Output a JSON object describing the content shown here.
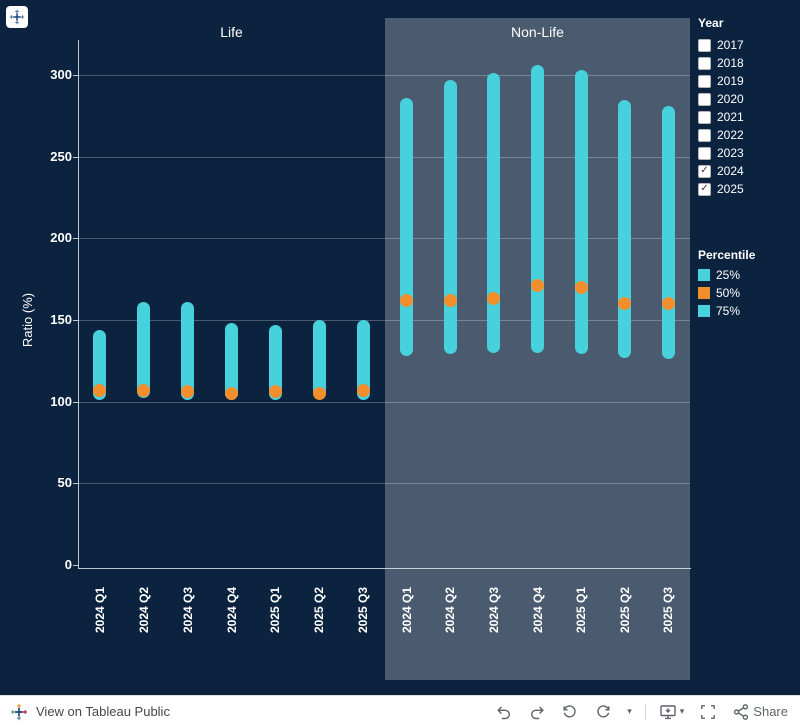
{
  "chart_data": {
    "type": "bar",
    "subtype": "percentile-range-bars-with-median-dot",
    "title": "",
    "ylabel": "Ratio (%)",
    "ylim": [
      0,
      320
    ],
    "yticks": [
      0,
      50,
      100,
      150,
      200,
      250,
      300
    ],
    "grid": true,
    "legend_position": "right",
    "categories": [
      "2024 Q1",
      "2024 Q2",
      "2024 Q3",
      "2024 Q4",
      "2025 Q1",
      "2025 Q2",
      "2025 Q3"
    ],
    "panels": [
      {
        "label": "Life",
        "series": [
          {
            "name": "25%",
            "values": [
              101,
              102,
              101,
              101,
              101,
              102,
              101
            ]
          },
          {
            "name": "50%",
            "values": [
              107,
              107,
              106,
              105,
              106,
              105,
              107
            ]
          },
          {
            "name": "75%",
            "values": [
              144,
              161,
              161,
              148,
              147,
              150,
              150
            ]
          }
        ]
      },
      {
        "label": "Non-Life",
        "series": [
          {
            "name": "25%",
            "values": [
              128,
              129,
              130,
              130,
              129,
              127,
              126
            ]
          },
          {
            "name": "50%",
            "values": [
              162,
              162,
              163,
              171,
              170,
              160,
              160
            ]
          },
          {
            "name": "75%",
            "values": [
              286,
              297,
              301,
              306,
              303,
              285,
              281
            ]
          }
        ]
      }
    ],
    "colors": {
      "bar": "#47d1dd",
      "median": "#f28e2c",
      "page_bg": "#0c2340",
      "nonlife_panel_bg": "#4a5b6f"
    }
  },
  "legend": {
    "year": {
      "title": "Year",
      "items": [
        {
          "label": "2017",
          "checked": false
        },
        {
          "label": "2018",
          "checked": false
        },
        {
          "label": "2019",
          "checked": false
        },
        {
          "label": "2020",
          "checked": false
        },
        {
          "label": "2021",
          "checked": false
        },
        {
          "label": "2022",
          "checked": false
        },
        {
          "label": "2023",
          "checked": false
        },
        {
          "label": "2024",
          "checked": true
        },
        {
          "label": "2025",
          "checked": true
        }
      ]
    },
    "percentile": {
      "title": "Percentile",
      "items": [
        {
          "label": "25%",
          "color": "#47d1dd"
        },
        {
          "label": "50%",
          "color": "#f28e2c"
        },
        {
          "label": "75%",
          "color": "#47d1dd"
        }
      ]
    }
  },
  "toolbar": {
    "view_on_label": "View on Tableau Public",
    "share_label": "Share",
    "icons": [
      "undo",
      "redo",
      "revert",
      "refresh",
      "dropdown-caret",
      "download",
      "fullscreen",
      "share"
    ]
  }
}
